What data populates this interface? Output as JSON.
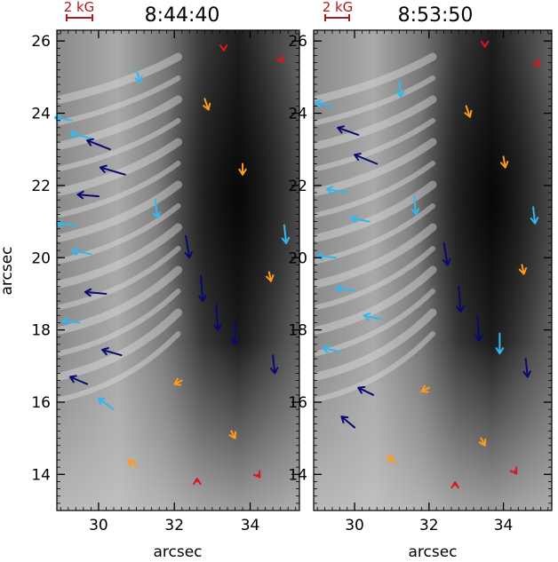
{
  "chart_data": [
    {
      "type": "vector-field",
      "title": "8:44:40",
      "xlabel": "arcsec",
      "ylabel": "arcsec",
      "xlim": [
        28.9,
        35.3
      ],
      "ylim": [
        13.0,
        26.3
      ],
      "x_ticks": [
        30,
        32,
        34
      ],
      "y_ticks": [
        14,
        16,
        18,
        20,
        22,
        24,
        26
      ],
      "scale_label": "2 kG",
      "background": "grayscale continuum intensity image",
      "vector_colors": {
        "strong": "#0a0a6e",
        "medium": "#36b6ee",
        "weak": "#ff9a1a",
        "weakest": "#d8161c"
      },
      "field_vectors": [
        {
          "x": 29.3,
          "y": 23.8,
          "dx": -0.45,
          "dy": 0.08,
          "class": "medium"
        },
        {
          "x": 29.8,
          "y": 23.3,
          "dx": -0.55,
          "dy": 0.15,
          "class": "medium"
        },
        {
          "x": 30.3,
          "y": 23.0,
          "dx": -0.6,
          "dy": 0.25,
          "class": "strong"
        },
        {
          "x": 30.7,
          "y": 22.3,
          "dx": -0.65,
          "dy": 0.2,
          "class": "strong"
        },
        {
          "x": 30.0,
          "y": 21.7,
          "dx": -0.55,
          "dy": 0.05,
          "class": "strong"
        },
        {
          "x": 29.4,
          "y": 20.9,
          "dx": -0.5,
          "dy": 0.05,
          "class": "medium"
        },
        {
          "x": 29.8,
          "y": 20.1,
          "dx": -0.5,
          "dy": 0.1,
          "class": "medium"
        },
        {
          "x": 30.2,
          "y": 19.0,
          "dx": -0.55,
          "dy": 0.05,
          "class": "strong"
        },
        {
          "x": 29.5,
          "y": 18.2,
          "dx": -0.45,
          "dy": 0.05,
          "class": "medium"
        },
        {
          "x": 30.6,
          "y": 17.3,
          "dx": -0.5,
          "dy": 0.15,
          "class": "strong"
        },
        {
          "x": 29.7,
          "y": 16.5,
          "dx": -0.45,
          "dy": 0.2,
          "class": "strong"
        },
        {
          "x": 30.4,
          "y": 15.8,
          "dx": -0.4,
          "dy": 0.3,
          "class": "medium"
        },
        {
          "x": 32.3,
          "y": 20.6,
          "dx": 0.1,
          "dy": -0.6,
          "class": "strong"
        },
        {
          "x": 32.7,
          "y": 19.5,
          "dx": 0.05,
          "dy": -0.7,
          "class": "strong"
        },
        {
          "x": 33.1,
          "y": 18.7,
          "dx": 0.05,
          "dy": -0.7,
          "class": "strong"
        },
        {
          "x": 33.6,
          "y": 18.2,
          "dx": 0.0,
          "dy": -0.6,
          "class": "strong"
        },
        {
          "x": 34.6,
          "y": 17.3,
          "dx": 0.05,
          "dy": -0.5,
          "class": "strong"
        },
        {
          "x": 31.5,
          "y": 21.6,
          "dx": 0.05,
          "dy": -0.5,
          "class": "medium"
        },
        {
          "x": 34.9,
          "y": 20.9,
          "dx": 0.05,
          "dy": -0.5,
          "class": "medium"
        },
        {
          "x": 31.0,
          "y": 25.2,
          "dx": 0.1,
          "dy": -0.35,
          "class": "medium"
        },
        {
          "x": 32.8,
          "y": 24.4,
          "dx": 0.1,
          "dy": -0.3,
          "class": "weak"
        },
        {
          "x": 33.8,
          "y": 22.6,
          "dx": 0.0,
          "dy": -0.3,
          "class": "weak"
        },
        {
          "x": 34.5,
          "y": 19.6,
          "dx": 0.05,
          "dy": -0.25,
          "class": "weak"
        },
        {
          "x": 32.2,
          "y": 16.6,
          "dx": -0.2,
          "dy": -0.1,
          "class": "weak"
        },
        {
          "x": 33.5,
          "y": 15.2,
          "dx": 0.1,
          "dy": -0.2,
          "class": "weak"
        },
        {
          "x": 31.0,
          "y": 14.2,
          "dx": -0.2,
          "dy": 0.2,
          "class": "weak"
        },
        {
          "x": 34.2,
          "y": 14.0,
          "dx": 0.05,
          "dy": -0.08,
          "class": "weakest"
        },
        {
          "x": 32.6,
          "y": 13.8,
          "dx": 0.0,
          "dy": 0.08,
          "class": "weakest"
        },
        {
          "x": 34.8,
          "y": 25.5,
          "dx": 0.05,
          "dy": -0.08,
          "class": "weakest"
        },
        {
          "x": 33.3,
          "y": 25.8,
          "dx": 0.0,
          "dy": -0.06,
          "class": "weakest"
        }
      ]
    },
    {
      "type": "vector-field",
      "title": "8:53:50",
      "xlabel": "arcsec",
      "ylabel": "",
      "xlim": [
        28.9,
        35.3
      ],
      "ylim": [
        13.0,
        26.3
      ],
      "x_ticks": [
        30,
        32,
        34
      ],
      "y_ticks": [
        14,
        16,
        18,
        20,
        22,
        24,
        26
      ],
      "scale_label": "2 kG",
      "background": "grayscale continuum intensity image",
      "vector_colors": {
        "strong": "#0a0a6e",
        "medium": "#36b6ee",
        "weak": "#ff9a1a",
        "weakest": "#d8161c"
      },
      "field_vectors": [
        {
          "x": 29.4,
          "y": 24.2,
          "dx": -0.45,
          "dy": 0.1,
          "class": "medium"
        },
        {
          "x": 30.1,
          "y": 23.4,
          "dx": -0.55,
          "dy": 0.2,
          "class": "strong"
        },
        {
          "x": 30.6,
          "y": 22.6,
          "dx": -0.6,
          "dy": 0.25,
          "class": "strong"
        },
        {
          "x": 29.8,
          "y": 21.8,
          "dx": -0.55,
          "dy": 0.1,
          "class": "medium"
        },
        {
          "x": 30.4,
          "y": 21.0,
          "dx": -0.5,
          "dy": 0.1,
          "class": "medium"
        },
        {
          "x": 29.5,
          "y": 20.0,
          "dx": -0.5,
          "dy": 0.05,
          "class": "medium"
        },
        {
          "x": 30.0,
          "y": 19.1,
          "dx": -0.5,
          "dy": 0.05,
          "class": "medium"
        },
        {
          "x": 30.7,
          "y": 18.3,
          "dx": -0.45,
          "dy": 0.1,
          "class": "medium"
        },
        {
          "x": 29.6,
          "y": 17.4,
          "dx": -0.45,
          "dy": 0.1,
          "class": "medium"
        },
        {
          "x": 30.5,
          "y": 16.2,
          "dx": -0.4,
          "dy": 0.2,
          "class": "strong"
        },
        {
          "x": 30.0,
          "y": 15.3,
          "dx": -0.35,
          "dy": 0.3,
          "class": "strong"
        },
        {
          "x": 31.2,
          "y": 24.9,
          "dx": 0.05,
          "dy": -0.45,
          "class": "medium"
        },
        {
          "x": 32.4,
          "y": 20.4,
          "dx": 0.1,
          "dy": -0.6,
          "class": "strong"
        },
        {
          "x": 32.8,
          "y": 19.2,
          "dx": 0.05,
          "dy": -0.7,
          "class": "strong"
        },
        {
          "x": 33.3,
          "y": 18.4,
          "dx": 0.05,
          "dy": -0.7,
          "class": "strong"
        },
        {
          "x": 33.9,
          "y": 17.9,
          "dx": 0.0,
          "dy": -0.55,
          "class": "medium"
        },
        {
          "x": 34.6,
          "y": 17.2,
          "dx": 0.05,
          "dy": -0.5,
          "class": "strong"
        },
        {
          "x": 31.6,
          "y": 21.7,
          "dx": 0.05,
          "dy": -0.5,
          "class": "medium"
        },
        {
          "x": 34.8,
          "y": 21.4,
          "dx": 0.05,
          "dy": -0.45,
          "class": "medium"
        },
        {
          "x": 33.0,
          "y": 24.2,
          "dx": 0.1,
          "dy": -0.3,
          "class": "weak"
        },
        {
          "x": 34.0,
          "y": 22.8,
          "dx": 0.05,
          "dy": -0.3,
          "class": "weak"
        },
        {
          "x": 34.5,
          "y": 19.8,
          "dx": 0.05,
          "dy": -0.25,
          "class": "weak"
        },
        {
          "x": 32.0,
          "y": 16.4,
          "dx": -0.2,
          "dy": -0.1,
          "class": "weak"
        },
        {
          "x": 33.4,
          "y": 15.0,
          "dx": 0.1,
          "dy": -0.2,
          "class": "weak"
        },
        {
          "x": 31.1,
          "y": 14.3,
          "dx": -0.2,
          "dy": 0.2,
          "class": "weak"
        },
        {
          "x": 34.3,
          "y": 14.1,
          "dx": 0.05,
          "dy": -0.08,
          "class": "weakest"
        },
        {
          "x": 32.7,
          "y": 13.7,
          "dx": 0.0,
          "dy": 0.08,
          "class": "weakest"
        },
        {
          "x": 34.9,
          "y": 25.4,
          "dx": 0.05,
          "dy": -0.08,
          "class": "weakest"
        },
        {
          "x": 33.5,
          "y": 25.9,
          "dx": 0.0,
          "dy": -0.06,
          "class": "weakest"
        }
      ]
    }
  ]
}
